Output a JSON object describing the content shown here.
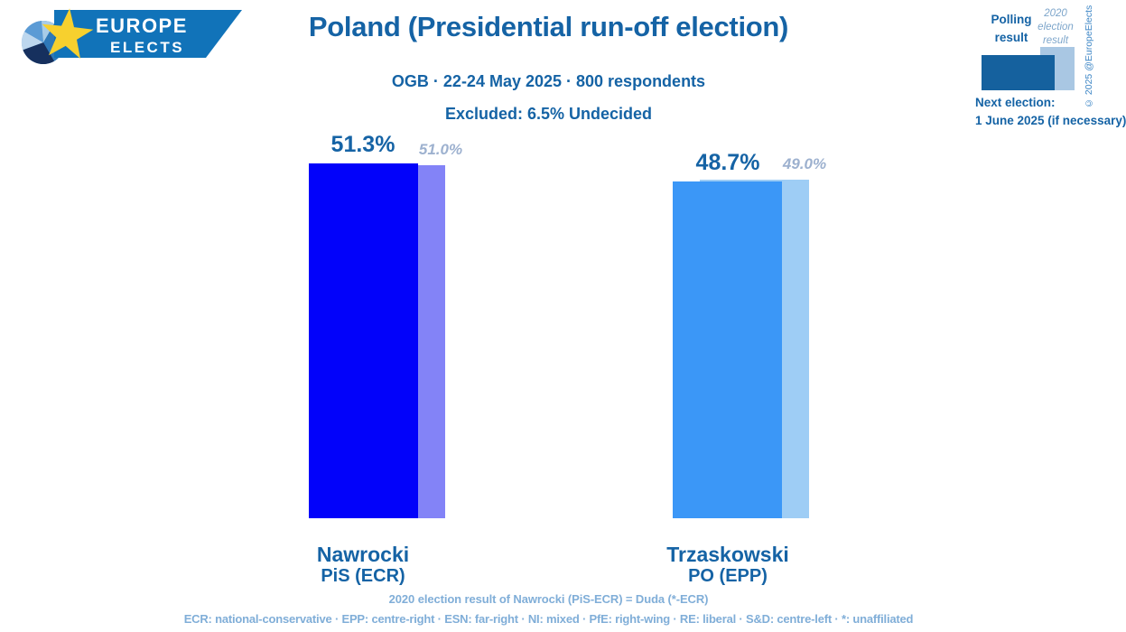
{
  "logo": {
    "line1": "EUROPE",
    "line2": "ELECTS"
  },
  "header": {
    "title": "Poland (Presidential run-off election)",
    "subtitle": "OGB · 22-24 May 2025 · 800 respondents",
    "excluded": "Excluded: 6.5% Undecided"
  },
  "legend": {
    "polling_label": "Polling result",
    "election_label": "2020 election result",
    "copyright": "© 2025 @EuropeElects",
    "next_election_label": "Next election:",
    "next_election_value": "1 June 2025 (if necessary)"
  },
  "chart_data": {
    "type": "bar",
    "title": "Poland (Presidential run-off election)",
    "subtitle": "OGB · 22-24 May 2025 · 800 respondents",
    "excluded_note": "Excluded: 6.5% Undecided",
    "categories": [
      "Nawrocki",
      "Trzaskowski"
    ],
    "party_labels": [
      "PiS (ECR)",
      "PO (EPP)"
    ],
    "series": [
      {
        "name": "Polling result",
        "values": [
          51.3,
          48.7
        ],
        "colors": [
          "#0202fa",
          "#3b97f7"
        ]
      },
      {
        "name": "2020 election result",
        "values": [
          51.0,
          49.0
        ],
        "colors": [
          "#8383f7",
          "#9ecdf5"
        ]
      }
    ],
    "value_labels": {
      "polling": [
        "51.3%",
        "48.7%"
      ],
      "election_2020": [
        "51.0%",
        "49.0%"
      ]
    },
    "ylim": [
      0,
      54.2
    ],
    "grid": false,
    "legend_position": "top-right",
    "accent_color": "#1563a5"
  },
  "footer": {
    "note": "2020 election result of Nawrocki (PiS-ECR) = Duda (*-ECR)",
    "glossary": "ECR: national-conservative · EPP: centre-right · ESN: far-right · NI: mixed · PfE: right-wing · RE: liberal · S&D: centre-left · *: unaffiliated"
  }
}
